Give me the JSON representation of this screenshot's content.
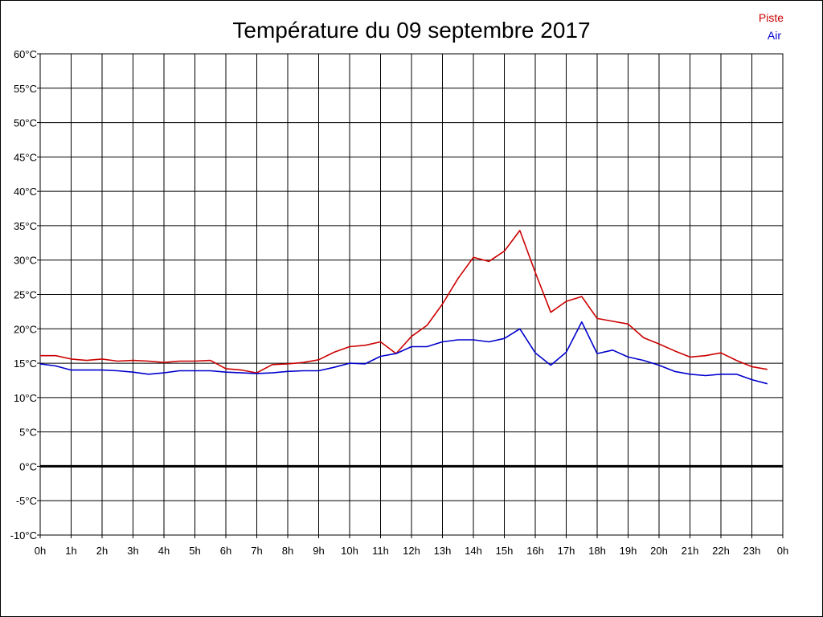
{
  "chart_data": {
    "type": "line",
    "title": "Température du 09 septembre 2017",
    "xlabel": "",
    "ylabel": "",
    "x_ticks": [
      "0h",
      "1h",
      "2h",
      "3h",
      "4h",
      "5h",
      "6h",
      "7h",
      "8h",
      "9h",
      "10h",
      "11h",
      "12h",
      "13h",
      "14h",
      "15h",
      "16h",
      "17h",
      "18h",
      "19h",
      "20h",
      "21h",
      "22h",
      "23h",
      "0h"
    ],
    "y_ticks": [
      "60°C",
      "55°C",
      "50°C",
      "45°C",
      "40°C",
      "35°C",
      "30°C",
      "25°C",
      "20°C",
      "15°C",
      "10°C",
      "5°C",
      "0°C",
      "-5°C",
      "-10°C"
    ],
    "xlim": [
      0,
      24
    ],
    "ylim": [
      -10,
      60
    ],
    "y_step": 5,
    "grid": true,
    "zero_line": true,
    "legend_position": "top-right",
    "x": [
      0,
      0.5,
      1,
      1.5,
      2,
      2.5,
      3,
      3.5,
      4,
      4.5,
      5,
      5.5,
      6,
      6.5,
      7,
      7.5,
      8,
      8.5,
      9,
      9.5,
      10,
      10.5,
      11,
      11.5,
      12,
      12.5,
      13,
      13.5,
      14,
      14.5,
      15,
      15.5,
      16,
      16.5,
      17,
      17.5,
      18,
      18.5,
      19,
      19.5,
      20,
      20.5,
      21,
      21.5,
      22,
      22.5,
      23,
      23.5
    ],
    "series": [
      {
        "name": "Piste",
        "color": "#cc0000",
        "values": [
          16.1,
          16.1,
          15.6,
          15.4,
          15.6,
          15.3,
          15.4,
          15.3,
          15.1,
          15.3,
          15.3,
          15.4,
          14.2,
          14.0,
          13.6,
          14.8,
          14.9,
          15.1,
          15.5,
          16.6,
          17.4,
          17.6,
          18.1,
          16.4,
          18.9,
          20.5,
          23.6,
          27.3,
          30.4,
          29.8,
          31.3,
          34.3,
          28.2,
          22.4,
          24.0,
          24.7,
          21.5,
          21.1,
          20.7,
          18.7,
          17.8,
          16.8,
          15.9,
          16.1,
          16.5,
          15.4,
          14.5,
          14.1
        ]
      },
      {
        "name": "Air",
        "color": "#0000cc",
        "values": [
          14.9,
          14.6,
          14.0,
          14.0,
          14.0,
          13.9,
          13.7,
          13.4,
          13.6,
          13.9,
          13.9,
          13.9,
          13.7,
          13.6,
          13.5,
          13.6,
          13.8,
          13.9,
          13.9,
          14.4,
          15.0,
          14.9,
          16.0,
          16.4,
          17.4,
          17.4,
          18.1,
          18.4,
          18.4,
          18.1,
          18.6,
          20.0,
          16.5,
          14.7,
          16.6,
          21.0,
          16.4,
          16.9,
          15.9,
          15.4,
          14.7,
          13.8,
          13.4,
          13.2,
          13.4,
          13.4,
          12.6,
          12.0
        ]
      }
    ]
  }
}
